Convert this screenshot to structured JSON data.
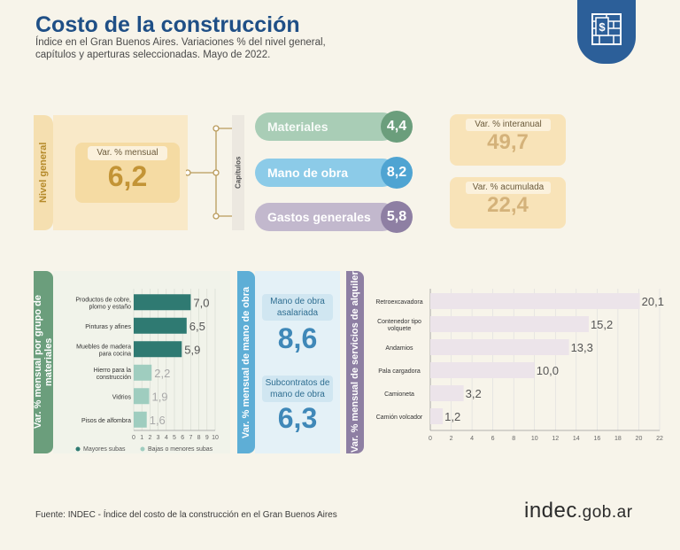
{
  "header": {
    "title": "Costo de la construcción",
    "subtitle_line1": "Índice en el Gran Buenos Aires. Variaciones % del nivel general,",
    "subtitle_line2": "capítulos y aperturas seleccionadas. Mayo de 2022."
  },
  "nivel_general": {
    "label": "Nivel general",
    "card_label": "Var. % mensual",
    "value": "6,2"
  },
  "capitulos": {
    "label": "Capítulos",
    "items": [
      {
        "name": "Materiales",
        "value": "4,4",
        "color": "#a9cdb6",
        "circle_color": "#6b9e7c"
      },
      {
        "name": "Mano de obra",
        "value": "8,2",
        "color": "#8ccbe8",
        "circle_color": "#4fa4d2"
      },
      {
        "name": "Gastos generales",
        "value": "5,8",
        "color": "#c2b8cd",
        "circle_color": "#8e7fa3"
      }
    ]
  },
  "interanual": {
    "label": "Var. % interanual",
    "value": "49,7"
  },
  "acumulada": {
    "label": "Var. % acumulada",
    "value": "22,4"
  },
  "materiales_panel": {
    "side_label": "Var. % mensual por grupo de materiales",
    "legend": [
      {
        "label": "Mayores subas",
        "color": "#2f7a72"
      },
      {
        "label": "Bajas o menores subas",
        "color": "#9fcdbf"
      }
    ]
  },
  "mano_obra_panel": {
    "side_label": "Var. % mensual de mano de obra",
    "asalariada_label": "Mano de obra asalariada",
    "asalariada_value": "8,6",
    "subcontratos_label": "Subcontratos de mano de obra",
    "subcontratos_value": "6,3"
  },
  "alquiler_panel": {
    "side_label": "Var. % mensual de servicios de alquiler"
  },
  "chart_data": [
    {
      "type": "bar",
      "orientation": "horizontal",
      "categories": [
        "Productos de cobre, plomo y estaño",
        "Pinturas y afines",
        "Muebles de madera para cocina",
        "Hierro para la construcción",
        "Vidrios",
        "Pisos de alfombra"
      ],
      "values": [
        7.0,
        6.5,
        5.9,
        2.2,
        1.9,
        1.6
      ],
      "labels": [
        "7,0",
        "6,5",
        "5,9",
        "2,2",
        "1,9",
        "1,6"
      ],
      "groups": [
        "Mayores subas",
        "Mayores subas",
        "Mayores subas",
        "Bajas o menores subas",
        "Bajas o menores subas",
        "Bajas o menores subas"
      ],
      "xticks": [
        0,
        1,
        2,
        3,
        4,
        5,
        6,
        7,
        8,
        9,
        10
      ],
      "xlim": [
        0,
        10
      ],
      "colors": {
        "Mayores subas": "#2f7a72",
        "Bajas o menores subas": "#9fcdbf"
      }
    },
    {
      "type": "bar",
      "orientation": "horizontal",
      "categories": [
        "Retroexcavadora",
        "Contenedor tipo volquete",
        "Andamios",
        "Pala cargadora",
        "Camioneta",
        "Camión volcador"
      ],
      "values": [
        20.1,
        15.2,
        13.3,
        10.0,
        3.2,
        1.2
      ],
      "labels": [
        "20,1",
        "15,2",
        "13,3",
        "10,0",
        "3,2",
        "1,2"
      ],
      "xticks": [
        0,
        2,
        4,
        6,
        8,
        10,
        12,
        14,
        16,
        18,
        20,
        22
      ],
      "xlim": [
        0,
        22
      ],
      "color": "#ece4ea"
    }
  ],
  "footer": {
    "source": "Fuente: INDEC - Índice del costo de la construcción en el Gran Buenos Aires",
    "logo_main": "indec",
    "logo_domain": ".gob.ar"
  }
}
